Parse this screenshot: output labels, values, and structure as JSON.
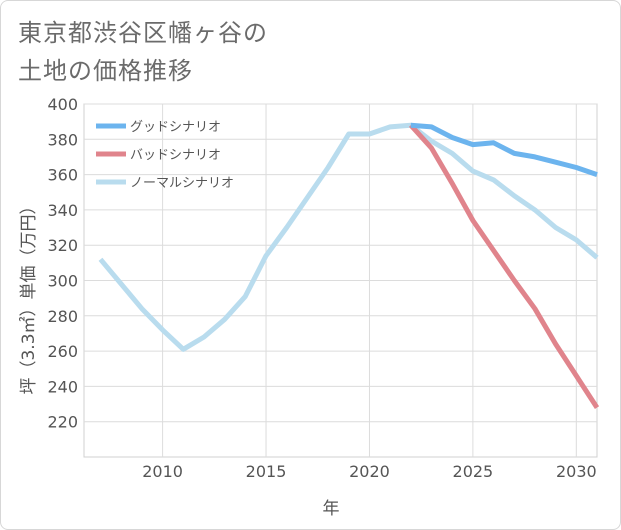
{
  "title": {
    "line1": "東京都渋谷区幡ヶ谷の",
    "line2": "土地の価格推移"
  },
  "chart_data": {
    "type": "line",
    "xlabel": "年",
    "ylabel": "坪（3.3㎡）単価（万円）",
    "xlim": [
      2006.2,
      2031
    ],
    "ylim": [
      200,
      400
    ],
    "x_ticks": [
      2010,
      2015,
      2020,
      2025,
      2030
    ],
    "y_ticks": [
      220,
      240,
      260,
      280,
      300,
      320,
      340,
      360,
      380,
      400
    ],
    "grid": true,
    "legend_position": "top-left",
    "series": [
      {
        "name": "グッドシナリオ",
        "color": "#6cb4ee",
        "x": [
          2022,
          2023,
          2024,
          2025,
          2026,
          2027,
          2028,
          2029,
          2030,
          2031
        ],
        "y": [
          388,
          387,
          381,
          377,
          378,
          372,
          370,
          367,
          364,
          360
        ]
      },
      {
        "name": "バッドシナリオ",
        "color": "#e0848c",
        "x": [
          2022,
          2023,
          2024,
          2025,
          2026,
          2027,
          2028,
          2029,
          2030,
          2031
        ],
        "y": [
          388,
          375,
          355,
          334,
          317,
          300,
          284,
          264,
          246,
          228
        ]
      },
      {
        "name": "ノーマルシナリオ",
        "color": "#b9dcee",
        "x": [
          2007,
          2008,
          2009,
          2010,
          2011,
          2012,
          2013,
          2014,
          2015,
          2016,
          2017,
          2018,
          2019,
          2020,
          2021,
          2022,
          2023,
          2024,
          2025,
          2026,
          2027,
          2028,
          2029,
          2030,
          2031
        ],
        "y": [
          312,
          298,
          284,
          272,
          261,
          268,
          278,
          291,
          314,
          330,
          347,
          364,
          383,
          383,
          387,
          388,
          379,
          372,
          362,
          357,
          348,
          340,
          330,
          323,
          313
        ]
      }
    ]
  }
}
